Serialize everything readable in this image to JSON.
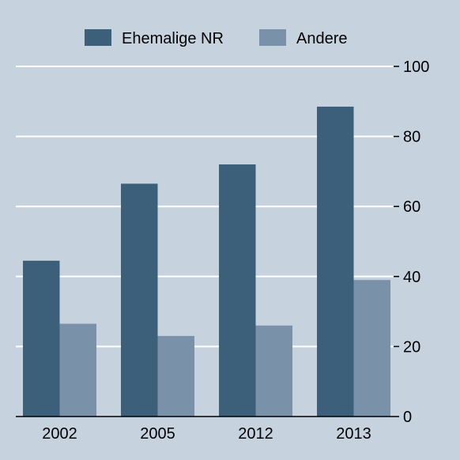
{
  "chart_data": {
    "type": "bar",
    "title": "",
    "xlabel": "",
    "ylabel": "",
    "categories": [
      "2002",
      "2005",
      "2012",
      "2013"
    ],
    "series": [
      {
        "name": "Ehemalige NR",
        "values": [
          44.5,
          66.5,
          72,
          88.5
        ],
        "color": "#3c6079"
      },
      {
        "name": "Andere",
        "values": [
          26.5,
          23,
          26,
          39
        ],
        "color": "#7a92a9"
      }
    ],
    "ylim": [
      0,
      100
    ],
    "yticks": [
      "0",
      "20",
      "40",
      "60",
      "80",
      "100"
    ],
    "y_axis_position": "right",
    "grid": true,
    "grid_color": "#ffffff",
    "legend_position": "top",
    "background_color": "#c6d3df"
  }
}
